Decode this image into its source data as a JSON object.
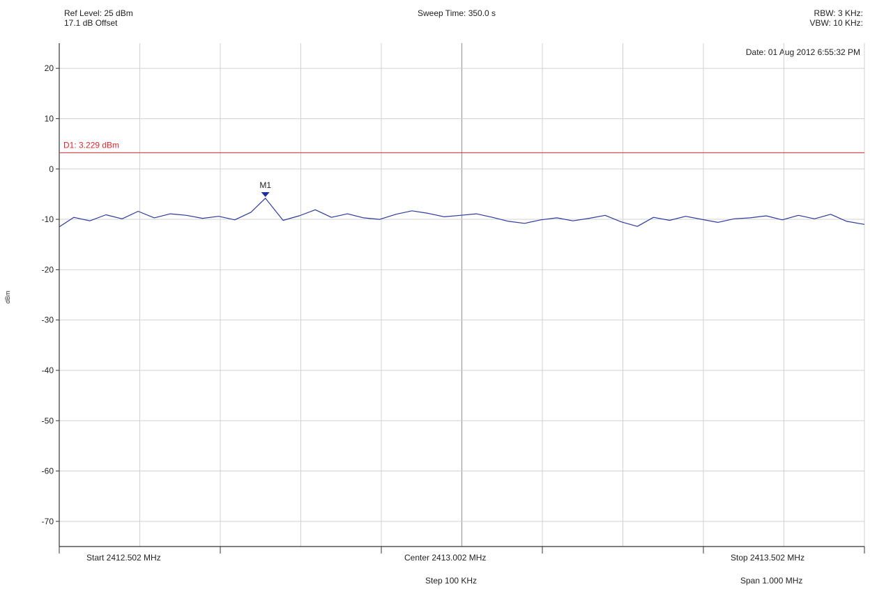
{
  "header": {
    "ref_level": "Ref Level: 25 dBm",
    "offset": "17.1 dB Offset",
    "sweep_time": "Sweep Time: 350.0 s",
    "rbw": "RBW: 3 KHz:",
    "vbw": "VBW: 10 KHz:",
    "date": "Date: 01 Aug 2012 6:55:32 PM"
  },
  "footer": {
    "start": "Start 2412.502 MHz",
    "center": "Center 2413.002 MHz",
    "stop": "Stop 2413.502 MHz",
    "step": "Step 100 KHz",
    "span": "Span 1.000 MHz"
  },
  "chart_data": {
    "type": "line",
    "ylabel": "dBm",
    "xlabel": "",
    "xlim": [
      2412.502,
      2413.502
    ],
    "ylim": [
      -75,
      25
    ],
    "y_ticks": [
      20,
      10,
      0,
      -10,
      -20,
      -30,
      -40,
      -50,
      -60,
      -70
    ],
    "grid": true,
    "display_line": {
      "label": "D1: 3.229 dBm",
      "value": 3.229,
      "color": "#e0262e"
    },
    "marker": {
      "label": "M1",
      "x": 2412.758,
      "y": -5.7,
      "color": "#1f2fa0"
    },
    "series": [
      {
        "color": "#2b3a9c",
        "x": [
          2412.502,
          2412.52,
          2412.54,
          2412.56,
          2412.58,
          2412.6,
          2412.62,
          2412.64,
          2412.66,
          2412.68,
          2412.7,
          2412.72,
          2412.74,
          2412.758,
          2412.78,
          2412.8,
          2412.82,
          2412.84,
          2412.86,
          2412.88,
          2412.9,
          2412.92,
          2412.94,
          2412.96,
          2412.98,
          2413.0,
          2413.02,
          2413.04,
          2413.06,
          2413.08,
          2413.1,
          2413.12,
          2413.14,
          2413.16,
          2413.18,
          2413.2,
          2413.22,
          2413.24,
          2413.26,
          2413.28,
          2413.3,
          2413.32,
          2413.34,
          2413.36,
          2413.38,
          2413.4,
          2413.42,
          2413.44,
          2413.46,
          2413.48,
          2413.502
        ],
        "y": [
          -11.5,
          -9.6,
          -10.3,
          -9.1,
          -9.9,
          -8.4,
          -9.7,
          -8.9,
          -9.2,
          -9.8,
          -9.4,
          -10.1,
          -8.6,
          -5.8,
          -10.2,
          -9.3,
          -8.1,
          -9.6,
          -8.9,
          -9.7,
          -10.0,
          -9.0,
          -8.3,
          -8.8,
          -9.5,
          -9.2,
          -8.9,
          -9.6,
          -10.4,
          -10.8,
          -10.1,
          -9.7,
          -10.3,
          -9.8,
          -9.2,
          -10.5,
          -11.4,
          -9.6,
          -10.2,
          -9.4,
          -10.0,
          -10.6,
          -9.9,
          -9.7,
          -9.3,
          -10.1,
          -9.2,
          -9.9,
          -9.0,
          -10.4,
          -11.0
        ]
      }
    ]
  }
}
